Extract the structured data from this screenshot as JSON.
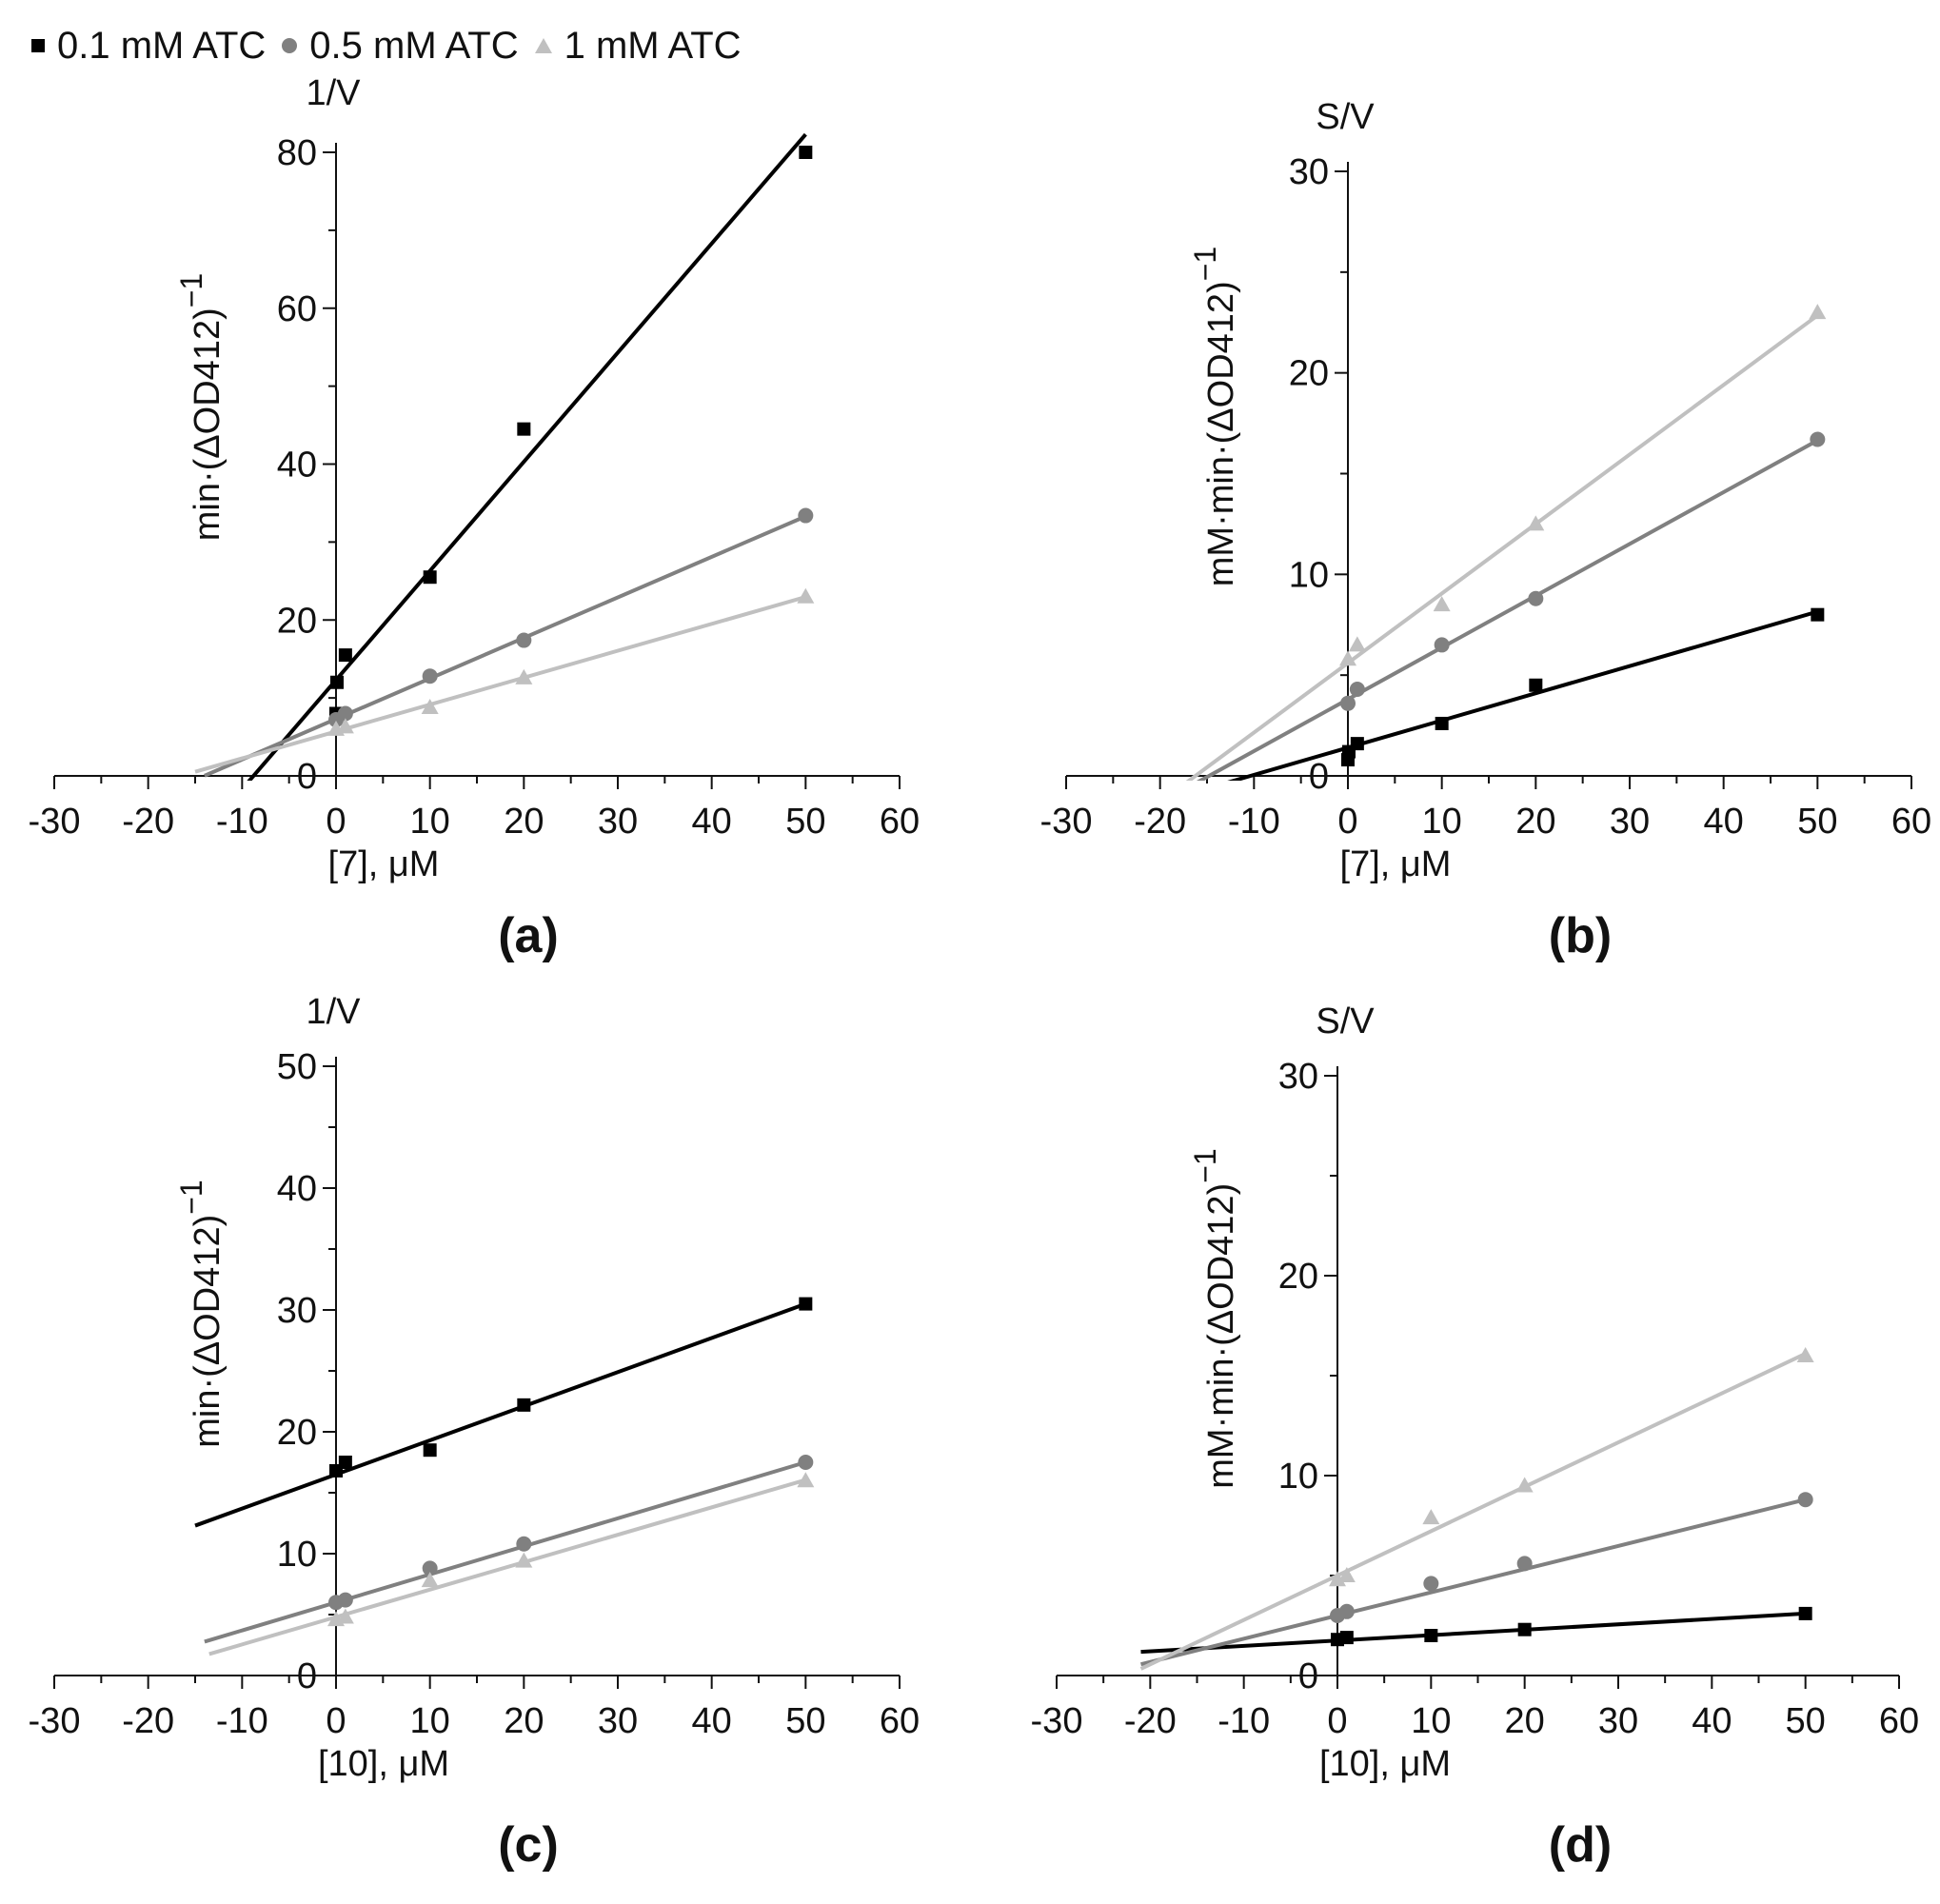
{
  "legend": [
    {
      "label": "0.1 mM ATC",
      "marker": "square",
      "color": "#000000"
    },
    {
      "label": "0.5 mM ATC",
      "marker": "circle",
      "color": "#808080"
    },
    {
      "label": "1 mM ATC",
      "marker": "triangle",
      "color": "#c0c0c0"
    }
  ],
  "chart_data": [
    {
      "id": "a",
      "panel_label": "(a)",
      "type": "scatter",
      "title": "",
      "axis_top_label": "1/V",
      "ylabel_text": "min·(ΔOD412)",
      "ylabel_sup": "−1",
      "xlabel": "[7], μM",
      "xlim": [
        -30,
        60
      ],
      "ylim": [
        0,
        80
      ],
      "xticks": [
        -30,
        -20,
        -10,
        0,
        10,
        20,
        30,
        40,
        50,
        60
      ],
      "yticks": [
        0,
        20,
        40,
        60,
        80
      ],
      "series": [
        {
          "name": "0.1 mM ATC",
          "x": [
            0,
            0.1,
            1,
            10,
            20,
            50
          ],
          "y": [
            8,
            12,
            15.5,
            25.5,
            44.5,
            80
          ],
          "fit_slope": 1.4,
          "fit_intercept": 12.3,
          "fit_x": [
            -9.5,
            50
          ]
        },
        {
          "name": "0.5 mM ATC",
          "x": [
            0,
            1,
            10,
            20,
            50
          ],
          "y": [
            7.2,
            8.0,
            12.8,
            17.4,
            33.4
          ],
          "fit_slope": 0.52,
          "fit_intercept": 7.3,
          "fit_x": [
            -14,
            50
          ]
        },
        {
          "name": "1 mM ATC",
          "x": [
            0,
            1,
            10,
            20,
            50
          ],
          "y": [
            6.0,
            6.3,
            8.8,
            12.6,
            23.0
          ],
          "fit_slope": 0.345,
          "fit_intercept": 5.7,
          "fit_x": [
            -15,
            50
          ]
        }
      ]
    },
    {
      "id": "b",
      "panel_label": "(b)",
      "type": "scatter",
      "title": "",
      "axis_top_label": "S/V",
      "ylabel_text": "mM·min·(ΔOD412)",
      "ylabel_sup": "−1",
      "xlabel": "[7], μM",
      "xlim": [
        -30,
        60
      ],
      "ylim": [
        0,
        30
      ],
      "xticks": [
        -30,
        -20,
        -10,
        0,
        10,
        20,
        30,
        40,
        50,
        60
      ],
      "yticks": [
        0,
        10,
        20,
        30
      ],
      "series": [
        {
          "name": "0.1 mM ATC",
          "x": [
            0,
            0.1,
            1,
            10,
            20,
            50
          ],
          "y": [
            0.8,
            1.2,
            1.6,
            2.6,
            4.5,
            8.0
          ],
          "fit_slope": 0.135,
          "fit_intercept": 1.4,
          "fit_x": [
            -25,
            50
          ]
        },
        {
          "name": "0.5 mM ATC",
          "x": [
            0,
            1,
            10,
            20,
            50
          ],
          "y": [
            3.6,
            4.3,
            6.5,
            8.8,
            16.7
          ],
          "fit_slope": 0.257,
          "fit_intercept": 3.8,
          "fit_x": [
            -25,
            50
          ]
        },
        {
          "name": "1 mM ATC",
          "x": [
            0,
            1,
            10,
            20,
            50
          ],
          "y": [
            5.8,
            6.5,
            8.5,
            12.5,
            23.0
          ],
          "fit_slope": 0.345,
          "fit_intercept": 5.6,
          "fit_x": [
            -25,
            50
          ]
        }
      ]
    },
    {
      "id": "c",
      "panel_label": "(c)",
      "type": "scatter",
      "title": "",
      "axis_top_label": "1/V",
      "ylabel_text": "min·(ΔOD412)",
      "ylabel_sup": "−1",
      "xlabel": "[10], μM",
      "xlim": [
        -30,
        60
      ],
      "ylim": [
        0,
        50
      ],
      "xticks": [
        -30,
        -20,
        -10,
        0,
        10,
        20,
        30,
        40,
        50,
        60
      ],
      "yticks": [
        0,
        10,
        20,
        30,
        40,
        50
      ],
      "series": [
        {
          "name": "0.1 mM ATC",
          "x": [
            0,
            1,
            10,
            20,
            50
          ],
          "y": [
            16.8,
            17.5,
            18.5,
            22.2,
            30.5
          ],
          "fit_slope": 0.28,
          "fit_intercept": 16.5,
          "fit_x": [
            -15,
            50
          ]
        },
        {
          "name": "0.5 mM ATC",
          "x": [
            0,
            1,
            10,
            20,
            50
          ],
          "y": [
            6.0,
            6.2,
            8.8,
            10.8,
            17.5
          ],
          "fit_slope": 0.23,
          "fit_intercept": 6.0,
          "fit_x": [
            -14,
            50
          ]
        },
        {
          "name": "1 mM ATC",
          "x": [
            0,
            1,
            10,
            20,
            50
          ],
          "y": [
            4.6,
            4.8,
            7.8,
            9.4,
            16.0
          ],
          "fit_slope": 0.225,
          "fit_intercept": 4.8,
          "fit_x": [
            -13.5,
            50
          ]
        }
      ]
    },
    {
      "id": "d",
      "panel_label": "(d)",
      "type": "scatter",
      "title": "",
      "axis_top_label": "S/V",
      "ylabel_text": "mM·min·(ΔOD412)",
      "ylabel_sup": "−1",
      "xlabel": "[10], μM",
      "xlim": [
        -30,
        60
      ],
      "ylim": [
        0,
        30
      ],
      "xticks": [
        -30,
        -20,
        -10,
        0,
        10,
        20,
        30,
        40,
        50,
        60
      ],
      "yticks": [
        0,
        10,
        20,
        30
      ],
      "series": [
        {
          "name": "0.1 mM ATC",
          "x": [
            0,
            1,
            10,
            20,
            50
          ],
          "y": [
            1.8,
            1.9,
            2.0,
            2.3,
            3.1
          ],
          "fit_slope": 0.027,
          "fit_intercept": 1.75,
          "fit_x": [
            -21,
            50
          ]
        },
        {
          "name": "0.5 mM ATC",
          "x": [
            0,
            1,
            10,
            20,
            50
          ],
          "y": [
            3.0,
            3.2,
            4.6,
            5.6,
            8.8
          ],
          "fit_slope": 0.116,
          "fit_intercept": 3.0,
          "fit_x": [
            -21,
            50
          ]
        },
        {
          "name": "1 mM ATC",
          "x": [
            0,
            1,
            10,
            20,
            50
          ],
          "y": [
            4.8,
            5.0,
            7.9,
            9.5,
            16.0
          ],
          "fit_slope": 0.222,
          "fit_intercept": 5.0,
          "fit_x": [
            -21,
            50
          ]
        }
      ]
    }
  ]
}
